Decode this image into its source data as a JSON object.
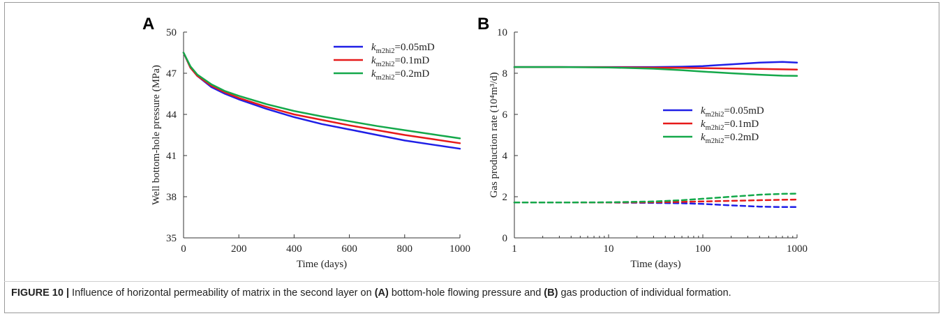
{
  "caption": {
    "label": "FIGURE 10 |",
    "t1": " Influence of horizontal permeability of matrix in the second layer on ",
    "a": "(A)",
    "t2": " bottom-hole flowing pressure and ",
    "b": "(B)",
    "t3": " gas production of individual formation."
  },
  "colors": {
    "blue": "#1f1fe6",
    "red": "#e61a1a",
    "green": "#14a84a"
  },
  "chart_data": [
    {
      "panel": "A",
      "type": "line",
      "xlabel": "Time (days)",
      "ylabel": "Well bottom-hole pressure (MPa)",
      "xlim": [
        0,
        1000
      ],
      "ylim": [
        35,
        50
      ],
      "xticks": [
        0,
        200,
        400,
        600,
        800,
        1000
      ],
      "xtick_labels": [
        "0",
        "200",
        "400",
        "600",
        "800",
        "1000"
      ],
      "yticks": [
        35,
        38,
        41,
        44,
        47,
        50
      ],
      "ytick_labels": [
        "35",
        "38",
        "41",
        "44",
        "47",
        "50"
      ],
      "legend": "top-right",
      "x": [
        0,
        25,
        50,
        100,
        150,
        200,
        300,
        400,
        500,
        600,
        700,
        800,
        900,
        1000
      ],
      "series": [
        {
          "k": "m2hi2",
          "value": "=0.05mD",
          "color": "blue",
          "values": [
            48.5,
            47.4,
            46.8,
            46.0,
            45.5,
            45.1,
            44.4,
            43.8,
            43.3,
            42.9,
            42.5,
            42.1,
            41.8,
            41.5
          ]
        },
        {
          "k": "m2hi2",
          "value": "=0.1mD",
          "color": "red",
          "values": [
            48.5,
            47.4,
            46.8,
            46.1,
            45.6,
            45.2,
            44.55,
            44.0,
            43.6,
            43.2,
            42.85,
            42.5,
            42.2,
            41.9
          ]
        },
        {
          "k": "m2hi2",
          "value": "=0.2mD",
          "color": "green",
          "values": [
            48.5,
            47.5,
            46.9,
            46.2,
            45.7,
            45.35,
            44.75,
            44.25,
            43.85,
            43.5,
            43.15,
            42.85,
            42.55,
            42.25
          ]
        }
      ]
    },
    {
      "panel": "B",
      "type": "line",
      "xlabel": "Time (days)",
      "ylabel": "Gas production rate (10⁴m³/d)",
      "xscale": "log",
      "xlim": [
        1,
        1000
      ],
      "ylim": [
        0,
        10
      ],
      "xticks": [
        1,
        10,
        100,
        1000
      ],
      "xtick_labels": [
        "1",
        "10",
        "100",
        "1000"
      ],
      "yticks": [
        0,
        2,
        4,
        6,
        8,
        10
      ],
      "ytick_labels": [
        "0",
        "2",
        "4",
        "6",
        "8",
        "10"
      ],
      "legend": "center-right",
      "x": [
        1,
        3,
        10,
        30,
        60,
        100,
        200,
        400,
        700,
        1000
      ],
      "series": [
        {
          "k": "m2hi2",
          "value": "=0.05mD",
          "color": "blue",
          "style": "solid",
          "values": [
            8.3,
            8.3,
            8.3,
            8.3,
            8.32,
            8.35,
            8.43,
            8.52,
            8.55,
            8.52
          ]
        },
        {
          "k": "m2hi2",
          "value": "=0.1mD",
          "color": "red",
          "style": "solid",
          "values": [
            8.3,
            8.3,
            8.29,
            8.27,
            8.26,
            8.25,
            8.23,
            8.21,
            8.19,
            8.18
          ]
        },
        {
          "k": "m2hi2",
          "value": "=0.2mD",
          "color": "green",
          "style": "solid",
          "values": [
            8.3,
            8.3,
            8.28,
            8.22,
            8.15,
            8.08,
            8.0,
            7.93,
            7.88,
            7.87
          ]
        },
        {
          "color": "blue",
          "style": "dashed",
          "values": [
            1.72,
            1.72,
            1.72,
            1.7,
            1.68,
            1.65,
            1.58,
            1.52,
            1.5,
            1.5
          ]
        },
        {
          "color": "red",
          "style": "dashed",
          "values": [
            1.72,
            1.72,
            1.72,
            1.73,
            1.75,
            1.77,
            1.8,
            1.83,
            1.85,
            1.86
          ]
        },
        {
          "color": "green",
          "style": "dashed",
          "values": [
            1.72,
            1.72,
            1.73,
            1.77,
            1.83,
            1.9,
            2.0,
            2.1,
            2.14,
            2.15
          ]
        }
      ]
    }
  ]
}
